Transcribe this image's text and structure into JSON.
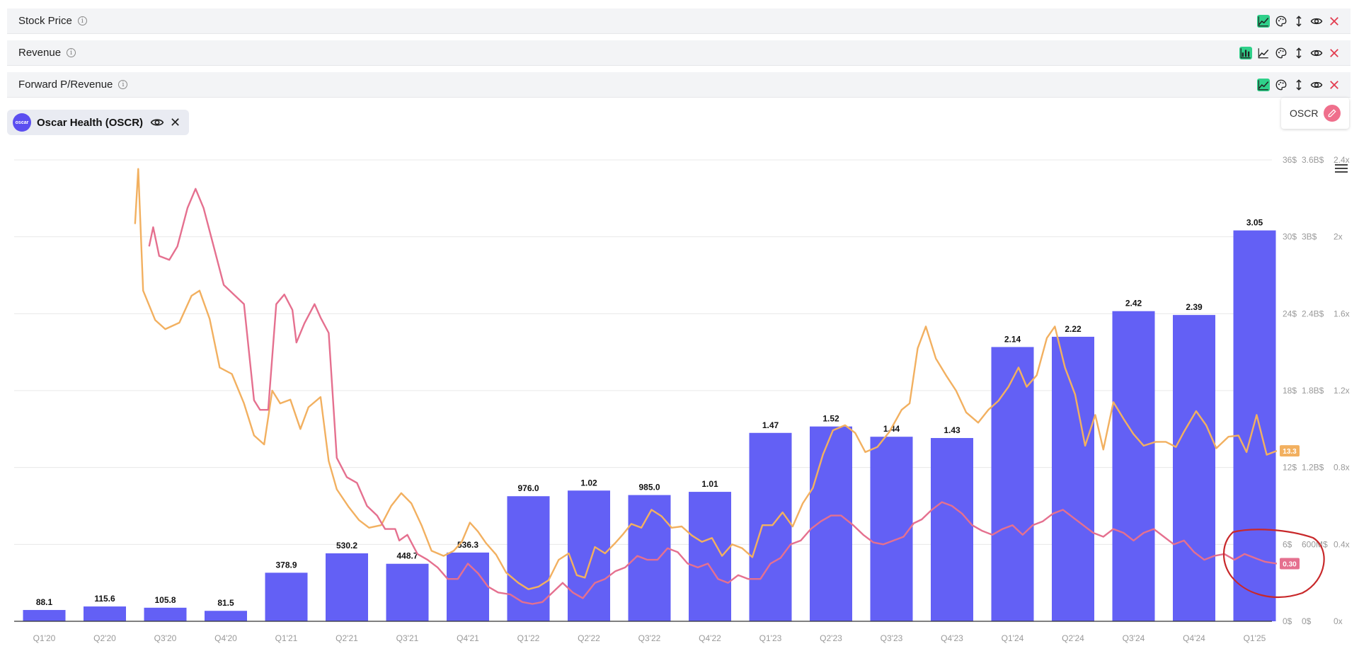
{
  "metric_rows": [
    {
      "label": "Stock Price",
      "icons": [
        "line-chart-icon",
        "palette-icon",
        "height-arrows-icon",
        "eye-icon",
        "close-icon"
      ],
      "active_icon": "line-chart-icon"
    },
    {
      "label": "Revenue",
      "icons": [
        "bar-chart-icon",
        "line-chart-icon",
        "palette-icon",
        "height-arrows-icon",
        "eye-icon",
        "close-icon"
      ],
      "active_icon": "bar-chart-icon"
    },
    {
      "label": "Forward P/Revenue",
      "icons": [
        "line-chart-icon",
        "palette-icon",
        "height-arrows-icon",
        "eye-icon",
        "close-icon"
      ],
      "active_icon": "line-chart-icon"
    }
  ],
  "company": {
    "name": "Oscar Health (OSCR)",
    "logo_text": "oscar"
  },
  "ticker_card": {
    "ticker": "OSCR"
  },
  "colors": {
    "bar": "#6360f5",
    "price": "#f2b060",
    "ratio": "#e5708f",
    "active_icon": "#2fd08a",
    "annotation": "#c8282a"
  },
  "chart_data": {
    "type": "bar",
    "categories": [
      "Q1'20",
      "Q2'20",
      "Q3'20",
      "Q4'20",
      "Q1'21",
      "Q2'21",
      "Q3'21",
      "Q4'21",
      "Q1'22",
      "Q2'22",
      "Q3'22",
      "Q4'22",
      "Q1'23",
      "Q2'23",
      "Q3'23",
      "Q4'23",
      "Q1'24",
      "Q2'24",
      "Q3'24",
      "Q4'24",
      "Q1'25"
    ],
    "bar_values_usd_m": [
      88.1,
      115.6,
      105.8,
      81.5,
      378.9,
      530.2,
      448.7,
      536.3,
      976.0,
      1020,
      985.0,
      1010,
      1470,
      1520,
      1440,
      1430,
      2140,
      2220,
      2420,
      2390,
      3050
    ],
    "bar_labels": [
      "88.1",
      "115.6",
      "105.8",
      "81.5",
      "378.9",
      "530.2",
      "448.7",
      "536.3",
      "976.0",
      "1.02",
      "985.0",
      "1.01",
      "1.47",
      "1.52",
      "1.44",
      "1.43",
      "2.14",
      "2.22",
      "2.42",
      "2.39",
      "3.05"
    ],
    "y_axes": {
      "price": {
        "ticks": [
          "36$",
          "30$",
          "24$",
          "18$",
          "12$",
          "6$",
          "0$"
        ],
        "range": [
          0,
          36
        ]
      },
      "revenue": {
        "ticks": [
          "3.6B$",
          "3B$",
          "2.4B$",
          "1.8B$",
          "1.2B$",
          "600M$",
          "0$"
        ],
        "range": [
          0,
          3600
        ]
      },
      "ratio": {
        "ticks": [
          "2.4x",
          "2x",
          "1.6x",
          "1.2x",
          "0.8x",
          "0.4x",
          "0x"
        ],
        "range": [
          0,
          2.4
        ]
      }
    },
    "series": [
      {
        "key": "price",
        "axis": "price",
        "end_label": "13.3",
        "points": [
          [
            3.0,
            31
          ],
          [
            3.08,
            35.3
          ],
          [
            3.2,
            25.8
          ],
          [
            3.5,
            23.5
          ],
          [
            3.75,
            22.8
          ],
          [
            4.1,
            23.3
          ],
          [
            4.4,
            25.4
          ],
          [
            4.6,
            25.8
          ],
          [
            4.85,
            23.6
          ],
          [
            5.1,
            19.8
          ],
          [
            5.4,
            19.3
          ],
          [
            5.7,
            17
          ],
          [
            5.95,
            14.5
          ],
          [
            6.2,
            13.8
          ],
          [
            6.4,
            18
          ],
          [
            6.6,
            17
          ],
          [
            6.85,
            17.3
          ],
          [
            7.1,
            15
          ],
          [
            7.3,
            16.7
          ],
          [
            7.6,
            17.5
          ],
          [
            7.8,
            12.5
          ],
          [
            8.0,
            10.3
          ],
          [
            8.3,
            8.9
          ],
          [
            8.55,
            7.9
          ],
          [
            8.8,
            7.3
          ],
          [
            9.1,
            7.5
          ],
          [
            9.35,
            9.0
          ],
          [
            9.6,
            10.0
          ],
          [
            9.85,
            9.2
          ],
          [
            10.1,
            7.5
          ],
          [
            10.35,
            5.5
          ],
          [
            10.65,
            5.1
          ],
          [
            10.9,
            5.5
          ],
          [
            11.1,
            6.2
          ],
          [
            11.3,
            7.7
          ],
          [
            11.5,
            7.0
          ],
          [
            11.7,
            6.1
          ],
          [
            11.95,
            5.2
          ],
          [
            12.2,
            3.8
          ],
          [
            12.5,
            3.0
          ],
          [
            12.75,
            2.5
          ],
          [
            13.0,
            2.7
          ],
          [
            13.25,
            3.2
          ],
          [
            13.5,
            4.8
          ],
          [
            13.75,
            5.3
          ],
          [
            13.95,
            3.6
          ],
          [
            14.15,
            3.4
          ],
          [
            14.4,
            5.8
          ],
          [
            14.65,
            5.3
          ],
          [
            14.9,
            6.1
          ],
          [
            15.1,
            6.8
          ],
          [
            15.3,
            7.6
          ],
          [
            15.55,
            7.3
          ],
          [
            15.8,
            8.7
          ],
          [
            16.05,
            8.2
          ],
          [
            16.3,
            7.3
          ],
          [
            16.55,
            7.4
          ],
          [
            16.8,
            6.7
          ],
          [
            17.05,
            6.2
          ],
          [
            17.3,
            6.5
          ],
          [
            17.55,
            5.1
          ],
          [
            17.8,
            6.0
          ],
          [
            18.05,
            5.7
          ],
          [
            18.3,
            5.0
          ],
          [
            18.55,
            7.5
          ],
          [
            18.8,
            7.5
          ],
          [
            19.05,
            8.5
          ],
          [
            19.3,
            7.4
          ],
          [
            19.55,
            9.2
          ],
          [
            19.8,
            10.4
          ],
          [
            20.05,
            13.0
          ],
          [
            20.3,
            14.9
          ],
          [
            20.6,
            15.3
          ],
          [
            20.85,
            14.7
          ],
          [
            21.1,
            13.2
          ],
          [
            21.4,
            13.6
          ],
          [
            21.7,
            14.8
          ],
          [
            22.0,
            16.5
          ],
          [
            22.2,
            17.0
          ],
          [
            22.4,
            21.3
          ],
          [
            22.6,
            23
          ],
          [
            22.85,
            20.5
          ],
          [
            23.1,
            19.2
          ],
          [
            23.35,
            18.0
          ],
          [
            23.6,
            16.3
          ],
          [
            23.9,
            15.5
          ],
          [
            24.15,
            16.5
          ],
          [
            24.4,
            17.2
          ],
          [
            24.65,
            18.3
          ],
          [
            24.9,
            19.8
          ],
          [
            25.1,
            18.3
          ],
          [
            25.35,
            19.2
          ],
          [
            25.6,
            22.1
          ],
          [
            25.8,
            23
          ],
          [
            26.05,
            19.8
          ],
          [
            26.3,
            17.7
          ],
          [
            26.55,
            13.7
          ],
          [
            26.8,
            16.1
          ],
          [
            27.0,
            13.4
          ],
          [
            27.25,
            17.1
          ],
          [
            27.5,
            15.8
          ],
          [
            27.75,
            14.6
          ],
          [
            28.0,
            13.7
          ],
          [
            28.3,
            14.0
          ],
          [
            28.55,
            14.0
          ],
          [
            28.8,
            13.6
          ],
          [
            29.0,
            14.8
          ],
          [
            29.3,
            16.4
          ],
          [
            29.55,
            15.3
          ],
          [
            29.8,
            13.5
          ],
          [
            30.1,
            14.4
          ],
          [
            30.35,
            14.5
          ],
          [
            30.55,
            13.2
          ],
          [
            30.8,
            16.1
          ],
          [
            31.05,
            13.0
          ],
          [
            31.3,
            13.3
          ]
        ]
      },
      {
        "key": "ratio",
        "axis": "ratio",
        "end_label": "0.30",
        "points": [
          [
            3.35,
            1.95
          ],
          [
            3.45,
            2.05
          ],
          [
            3.6,
            1.9
          ],
          [
            3.85,
            1.88
          ],
          [
            4.05,
            1.95
          ],
          [
            4.3,
            2.15
          ],
          [
            4.5,
            2.25
          ],
          [
            4.7,
            2.15
          ],
          [
            4.95,
            1.95
          ],
          [
            5.2,
            1.75
          ],
          [
            5.45,
            1.7
          ],
          [
            5.7,
            1.65
          ],
          [
            5.95,
            1.15
          ],
          [
            6.1,
            1.1
          ],
          [
            6.3,
            1.1
          ],
          [
            6.5,
            1.65
          ],
          [
            6.7,
            1.7
          ],
          [
            6.9,
            1.62
          ],
          [
            7.0,
            1.45
          ],
          [
            7.2,
            1.55
          ],
          [
            7.45,
            1.65
          ],
          [
            7.6,
            1.58
          ],
          [
            7.8,
            1.5
          ],
          [
            8.0,
            0.85
          ],
          [
            8.25,
            0.75
          ],
          [
            8.5,
            0.72
          ],
          [
            8.75,
            0.6
          ],
          [
            9.0,
            0.55
          ],
          [
            9.2,
            0.48
          ],
          [
            9.45,
            0.48
          ],
          [
            9.55,
            0.42
          ],
          [
            9.75,
            0.45
          ],
          [
            10.0,
            0.35
          ],
          [
            10.25,
            0.32
          ],
          [
            10.5,
            0.28
          ],
          [
            10.75,
            0.22
          ],
          [
            11.0,
            0.22
          ],
          [
            11.25,
            0.3
          ],
          [
            11.5,
            0.25
          ],
          [
            11.75,
            0.18
          ],
          [
            12.0,
            0.15
          ],
          [
            12.3,
            0.14
          ],
          [
            12.6,
            0.1
          ],
          [
            12.85,
            0.09
          ],
          [
            13.1,
            0.1
          ],
          [
            13.35,
            0.15
          ],
          [
            13.6,
            0.2
          ],
          [
            13.85,
            0.15
          ],
          [
            14.1,
            0.12
          ],
          [
            14.4,
            0.2
          ],
          [
            14.65,
            0.22
          ],
          [
            14.9,
            0.26
          ],
          [
            15.15,
            0.28
          ],
          [
            15.45,
            0.34
          ],
          [
            15.7,
            0.32
          ],
          [
            15.95,
            0.32
          ],
          [
            16.2,
            0.38
          ],
          [
            16.45,
            0.36
          ],
          [
            16.7,
            0.3
          ],
          [
            16.95,
            0.28
          ],
          [
            17.2,
            0.3
          ],
          [
            17.45,
            0.22
          ],
          [
            17.7,
            0.2
          ],
          [
            17.95,
            0.24
          ],
          [
            18.2,
            0.22
          ],
          [
            18.5,
            0.22
          ],
          [
            18.75,
            0.3
          ],
          [
            19.0,
            0.33
          ],
          [
            19.25,
            0.4
          ],
          [
            19.5,
            0.42
          ],
          [
            19.75,
            0.48
          ],
          [
            20.0,
            0.52
          ],
          [
            20.25,
            0.55
          ],
          [
            20.5,
            0.55
          ],
          [
            20.8,
            0.5
          ],
          [
            21.05,
            0.45
          ],
          [
            21.3,
            0.41
          ],
          [
            21.55,
            0.4
          ],
          [
            21.8,
            0.42
          ],
          [
            22.05,
            0.44
          ],
          [
            22.3,
            0.51
          ],
          [
            22.5,
            0.53
          ],
          [
            22.75,
            0.58
          ],
          [
            23.0,
            0.62
          ],
          [
            23.25,
            0.6
          ],
          [
            23.5,
            0.56
          ],
          [
            23.75,
            0.5
          ],
          [
            24.0,
            0.47
          ],
          [
            24.25,
            0.45
          ],
          [
            24.5,
            0.48
          ],
          [
            24.75,
            0.5
          ],
          [
            25.0,
            0.45
          ],
          [
            25.25,
            0.5
          ],
          [
            25.5,
            0.52
          ],
          [
            25.75,
            0.56
          ],
          [
            26.0,
            0.58
          ],
          [
            26.25,
            0.54
          ],
          [
            26.5,
            0.5
          ],
          [
            26.75,
            0.46
          ],
          [
            27.0,
            0.44
          ],
          [
            27.25,
            0.48
          ],
          [
            27.5,
            0.46
          ],
          [
            27.75,
            0.42
          ],
          [
            28.0,
            0.46
          ],
          [
            28.25,
            0.48
          ],
          [
            28.5,
            0.44
          ],
          [
            28.75,
            0.4
          ],
          [
            29.0,
            0.42
          ],
          [
            29.25,
            0.36
          ],
          [
            29.5,
            0.32
          ],
          [
            29.75,
            0.34
          ],
          [
            30.0,
            0.35
          ],
          [
            30.25,
            0.32
          ],
          [
            30.5,
            0.35
          ],
          [
            30.75,
            0.33
          ],
          [
            31.0,
            0.31
          ],
          [
            31.3,
            0.3
          ]
        ]
      }
    ]
  }
}
